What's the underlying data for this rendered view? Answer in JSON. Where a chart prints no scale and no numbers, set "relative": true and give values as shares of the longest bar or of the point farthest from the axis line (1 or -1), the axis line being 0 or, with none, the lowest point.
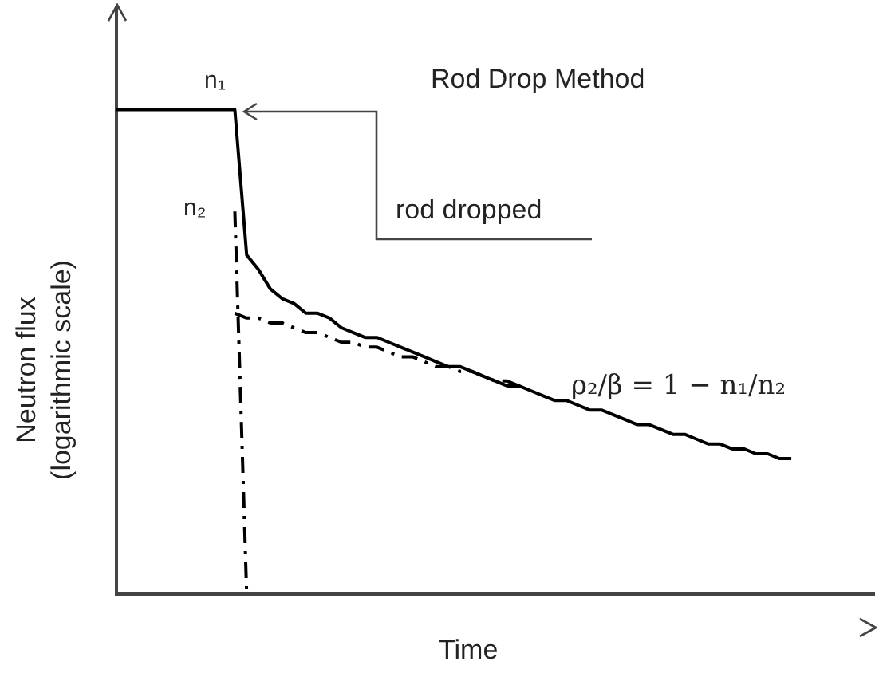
{
  "chart_data": {
    "type": "line",
    "title": "Rod Drop Method",
    "xlabel": "Time",
    "ylabel": "Neutron flux (logarithmic scale)",
    "relative": true,
    "legend": false,
    "marker": "none",
    "categories": [
      null,
      null,
      null,
      null,
      null,
      null,
      null,
      null,
      null,
      null,
      null,
      null,
      null,
      null,
      null,
      null,
      null,
      null,
      null,
      null,
      null,
      null,
      null,
      null,
      null,
      null,
      null,
      null,
      null,
      null,
      null,
      null,
      null,
      null,
      null,
      null,
      null,
      null,
      null,
      null,
      null,
      null,
      null,
      null,
      null,
      null,
      null,
      null,
      null,
      null,
      null,
      null,
      null,
      null,
      null,
      null,
      null,
      null,
      null,
      null,
      null,
      null,
      null,
      null,
      null
    ],
    "series": [
      {
        "color": "#000000",
        "line_style": "solid",
        "values": [
          1,
          1,
          1,
          1,
          1,
          1,
          1,
          1,
          1,
          1,
          1,
          0.7,
          0.67,
          0.63,
          0.61,
          0.6,
          0.58,
          0.58,
          0.57,
          0.55,
          0.54,
          0.53,
          0.53,
          0.52,
          0.51,
          0.5,
          0.49,
          0.48,
          0.47,
          0.47,
          0.46,
          0.45,
          0.44,
          0.43,
          0.43,
          0.42,
          0.41,
          0.4,
          0.4,
          0.39,
          0.38,
          0.38,
          0.37,
          0.36,
          0.35,
          0.35,
          0.34,
          0.33,
          0.33,
          0.32,
          0.31,
          0.31,
          0.3,
          0.3,
          0.29,
          0.29,
          0.28,
          0.28,
          null,
          null,
          null,
          null,
          null,
          null,
          null
        ]
      },
      {
        "color": "#000000",
        "line_style": "dashed",
        "values": [
          null,
          null,
          null,
          null,
          null,
          null,
          null,
          null,
          null,
          null,
          0.58,
          0.57,
          0.57,
          0.56,
          0.56,
          0.55,
          0.54,
          0.54,
          0.53,
          0.52,
          0.52,
          0.51,
          0.51,
          0.5,
          0.49,
          0.49,
          0.48,
          0.47,
          0.47,
          0.46,
          0.46,
          0.45,
          0.44,
          0.44,
          0.43,
          null,
          null,
          null,
          null,
          null,
          null,
          null,
          null,
          null,
          null,
          null,
          null,
          null,
          null,
          null,
          null,
          null,
          null,
          null,
          null,
          null,
          null,
          null,
          null,
          null,
          null,
          null,
          null,
          null,
          null
        ]
      },
      {
        "color": "#000000",
        "line_style": "dashed",
        "values": [
          null,
          null,
          null,
          null,
          null,
          null,
          null,
          null,
          null,
          null,
          0.79,
          0,
          null,
          null,
          null,
          null,
          null,
          null,
          null,
          null,
          null,
          null,
          null,
          null,
          null,
          null,
          null,
          null,
          null,
          null,
          null,
          null,
          null,
          null,
          null,
          null,
          null,
          null,
          null,
          null,
          null,
          null,
          null,
          null,
          null,
          null,
          null,
          null,
          null,
          null,
          null,
          null,
          null,
          null,
          null,
          null,
          null,
          null,
          null,
          null,
          null,
          null,
          null,
          null,
          null
        ]
      }
    ],
    "annotations": [
      "n₁",
      "n₂",
      "rod dropped",
      "ρ₂/β = 1 − n₁/n₂"
    ]
  }
}
